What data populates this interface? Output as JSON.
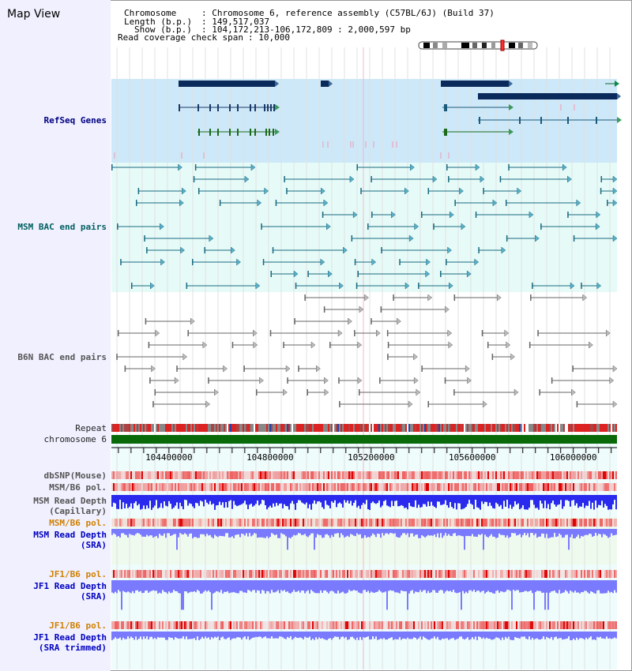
{
  "view_title": "Map View",
  "info": {
    "chromosome_key": "Chromosome",
    "chromosome_value": ": Chromosome 6, reference assembly (C57BL/6J) (Build 37)",
    "length_key": "Length (b.p.)",
    "length_value": ": 149,517,037",
    "show_key": "Show (b.p.)",
    "show_value": ": 104,172,213-106,172,809 : 2,000,597 bp",
    "span_key": "Read coverage check span",
    "span_value": ": 10,000"
  },
  "tracks": {
    "refseq": "RefSeq Genes",
    "msm_bac": "MSM BAC end pairs",
    "b6n_bac": "B6N BAC end pairs",
    "repeat": "Repeat",
    "chromosome": "chromosome 6",
    "dbsnp": "dbSNP(Mouse)",
    "msm_b6_pol": "MSM/B6 pol.",
    "msm_depth_cap_1": "MSM Read Depth",
    "msm_depth_cap_2": "(Capillary)",
    "msm_b6_pol_2": "MSM/B6 pol.",
    "msm_depth_sra_1": "MSM Read Depth",
    "msm_depth_sra_2": "(SRA)",
    "jf1_b6_pol": "JF1/B6 pol.",
    "jf1_depth_sra_1": "JF1 Read Depth",
    "jf1_depth_sra_2": "(SRA)",
    "jf1_b6_pol_2": "JF1/B6 pol.",
    "jf1_depth_trim_1": "JF1 Read Depth",
    "jf1_depth_trim_2": "(SRA trimmed)"
  },
  "axis": {
    "ticks": [
      "104400000",
      "104800000",
      "105200000",
      "105600000",
      "106000000"
    ],
    "range_bp": [
      104172213,
      106172809
    ]
  },
  "colors": {
    "refseq_bg": "#cde8f8",
    "msm_bg": "#e6fbf8",
    "gene_fill": "#0a2a5c",
    "msm_color": "#1a6a80",
    "b6n_color": "#666666",
    "snp_red": "#e84040",
    "depth_blue": "#2a2aee",
    "sra_blue": "#7a7aff",
    "chrom_green": "#0a6a0a"
  },
  "icons": {
    "ideogram": "chromosome-ideogram-icon"
  }
}
